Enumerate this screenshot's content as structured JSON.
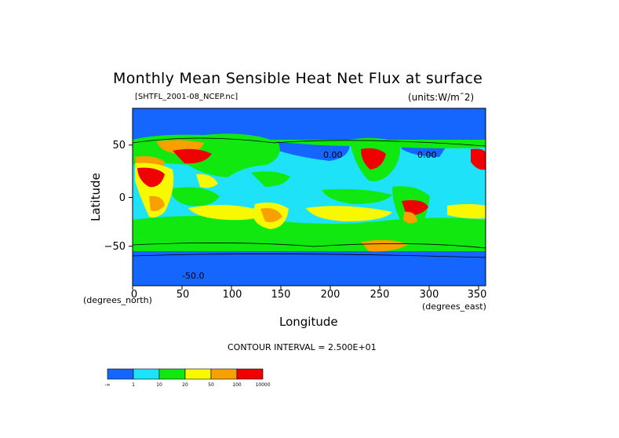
{
  "title": "Monthly Mean Sensible Heat Net Flux at surface",
  "file_label": "[SHTFL_2001-08_NCEP.nc]",
  "units_label": "(units:W/m¯2)",
  "axes": {
    "x_title": "Longitude",
    "y_title": "Latitude",
    "x_units": "(degrees_east)",
    "y_units": "(degrees_north)",
    "x_ticks": [
      "0",
      "50",
      "100",
      "150",
      "200",
      "250",
      "300",
      "350"
    ],
    "y_ticks": [
      "50",
      "0",
      "−50"
    ],
    "x_range": [
      0,
      357.5
    ],
    "y_range": [
      -90,
      90
    ]
  },
  "contour_labels": [
    "0.00",
    "0.00",
    "-50.0"
  ],
  "contour_interval": "CONTOUR INTERVAL = 2.500E+01",
  "colorbar": {
    "colors": [
      "#1566ff",
      "#1ee3f8",
      "#10e810",
      "#f8f800",
      "#f8a000",
      "#f00000"
    ],
    "tick_labels": [
      "-∞",
      "1",
      "10",
      "20",
      "50",
      "100",
      "10000"
    ]
  }
}
